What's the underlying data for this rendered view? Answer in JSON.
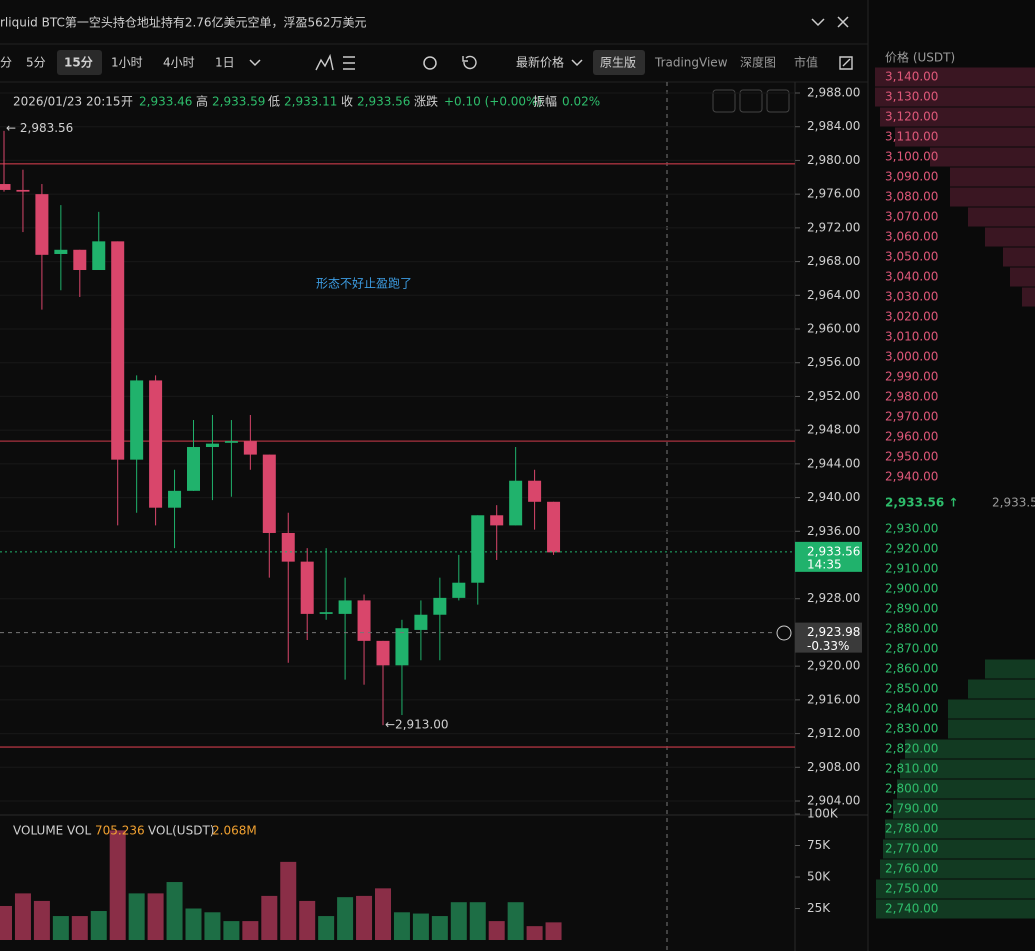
{
  "header": {
    "title": "rliquid BTC第一空头持仓地址持有2.76亿美元空单，浮盈562万美元"
  },
  "toolbar": {
    "intervals": [
      "分",
      "5分",
      "15分",
      "1小时",
      "4小时",
      "1日"
    ],
    "price_type": "最新价格",
    "views": [
      "原生版",
      "TradingView",
      "深度图",
      "市值"
    ]
  },
  "chart_data": {
    "type": "candlestick",
    "info": {
      "date": "2026/01/23 20:15",
      "items": [
        [
          "开",
          "2,933.46"
        ],
        [
          "高",
          "2,933.59"
        ],
        [
          "低",
          "2,933.11"
        ],
        [
          "收",
          "2,933.56"
        ],
        [
          "涨跌",
          "+0.10 (+0.00%)"
        ],
        [
          "振幅",
          "0.02%"
        ]
      ]
    },
    "open": [
      2977.2,
      2976.5,
      2976.0,
      2968.9,
      2969.4,
      2967.0,
      2970.4,
      2944.5,
      2953.9,
      2938.8,
      2940.8,
      2946.0,
      2946.5,
      2946.7,
      2945.1,
      2935.8,
      2932.4,
      2926.2,
      2926.2,
      2927.8,
      2923.0,
      2920.1,
      2924.3,
      2926.1,
      2928.1,
      2929.9,
      2937.9,
      2936.7,
      2942.0,
      2939.5
    ],
    "high": [
      2983.5,
      2978.9,
      2977.2,
      2974.7,
      2969.4,
      2973.9,
      2970.4,
      2954.5,
      2954.5,
      2943.3,
      2949.2,
      2949.8,
      2949.2,
      2949.8,
      2945.1,
      2938.2,
      2934.0,
      2934.0,
      2930.5,
      2928.5,
      2923.0,
      2925.5,
      2927.8,
      2930.5,
      2933.2,
      2937.9,
      2939.1,
      2946.0,
      2943.3,
      2939.5
    ],
    "low": [
      2976.3,
      2971.5,
      2962.3,
      2964.6,
      2963.8,
      2967.0,
      2936.7,
      2938.2,
      2936.7,
      2934.0,
      2940.8,
      2939.7,
      2940.1,
      2943.3,
      2930.5,
      2920.4,
      2923.1,
      2925.5,
      2918.4,
      2917.8,
      2913.0,
      2914.2,
      2920.7,
      2920.7,
      2927.8,
      2927.3,
      2932.6,
      2936.7,
      2936.2,
      2933.2
    ],
    "close": [
      2976.5,
      2976.3,
      2968.8,
      2969.4,
      2967.0,
      2970.4,
      2944.5,
      2953.9,
      2938.8,
      2940.8,
      2946.0,
      2946.4,
      2946.7,
      2945.1,
      2935.8,
      2932.4,
      2926.2,
      2926.4,
      2927.8,
      2923.0,
      2920.1,
      2924.5,
      2926.1,
      2928.1,
      2929.9,
      2937.9,
      2936.7,
      2942.0,
      2939.5,
      2933.5
    ],
    "volume": [
      27000,
      37000,
      31000,
      19000,
      19000,
      23000,
      87000,
      37000,
      37000,
      46000,
      25000,
      22000,
      15000,
      15000,
      35000,
      62000,
      31000,
      19000,
      34000,
      35000,
      41000,
      22000,
      21000,
      19000,
      30000,
      30000,
      15000,
      30000,
      11000,
      14000
    ],
    "up_color": "#20b26c",
    "down_color": "#d9466b",
    "ylim": [
      2902.34,
      2988.95
    ],
    "yticks": [
      {
        "value": 2988,
        "label": "2,988.00"
      },
      {
        "value": 2984,
        "label": "2,984.00"
      },
      {
        "value": 2980,
        "label": "2,980.00"
      },
      {
        "value": 2976,
        "label": "2,976.00"
      },
      {
        "value": 2972,
        "label": "2,972.00"
      },
      {
        "value": 2968,
        "label": "2,968.00"
      },
      {
        "value": 2964,
        "label": "2,964.00"
      },
      {
        "value": 2960,
        "label": "2,960.00"
      },
      {
        "value": 2956,
        "label": "2,956.00"
      },
      {
        "value": 2952,
        "label": "2,952.00"
      },
      {
        "value": 2948,
        "label": "2,948.00"
      },
      {
        "value": 2944,
        "label": "2,944.00"
      },
      {
        "value": 2940,
        "label": "2,940.00"
      },
      {
        "value": 2936,
        "label": "2,936.00"
      },
      {
        "value": 2928,
        "label": "2,928.00"
      },
      {
        "value": 2920,
        "label": "2,920.00"
      },
      {
        "value": 2916,
        "label": "2,916.00"
      },
      {
        "value": 2912,
        "label": "2,912.00"
      },
      {
        "value": 2908,
        "label": "2,908.00"
      },
      {
        "value": 2904,
        "label": "2,904.00"
      }
    ],
    "level_lines": [
      2979.6,
      2946.7,
      2910.4
    ],
    "last_price": {
      "value": 2933.56,
      "label": "2,933.56",
      "countdown": "14:35"
    },
    "crosshair": {
      "value": 2923.98,
      "label": "2,923.98",
      "change": "-0.33%"
    },
    "high_marker": {
      "value": 2983.56,
      "label": "← 2,983.56"
    },
    "low_marker": {
      "value": 2913.0,
      "label": "←2,913.00"
    },
    "annotation": "形态不好止盈跑了",
    "volume_header": [
      "VOLUME",
      "VOL",
      "705.236",
      "VOL(USDT)",
      "2.068M"
    ],
    "vol_ylim": [
      0,
      100000
    ],
    "vol_yticks": [
      {
        "value": 100000,
        "label": "100K"
      },
      {
        "value": 75000,
        "label": "75K"
      },
      {
        "value": 50000,
        "label": "50K"
      },
      {
        "value": 25000,
        "label": "25K"
      }
    ]
  },
  "orderbook": {
    "header": "价格 (USDT)",
    "asks": {
      "prices": [
        "3,140.00",
        "3,130.00",
        "3,120.00",
        "3,110.00",
        "3,100.00",
        "3,090.00",
        "3,080.00",
        "3,070.00",
        "3,060.00",
        "3,050.00",
        "3,040.00",
        "3,030.00",
        "3,020.00",
        "3,010.00",
        "3,000.00",
        "2,990.00",
        "2,980.00",
        "2,970.00",
        "2,960.00",
        "2,950.00",
        "2,940.00"
      ],
      "depth": [
        160,
        160,
        155,
        140,
        105,
        85,
        85,
        67,
        50,
        32,
        25,
        13,
        0,
        0,
        0,
        0,
        0,
        0,
        0,
        0,
        0
      ]
    },
    "last": "2,933.56 ↑",
    "last_small": "2,933.5",
    "bids": {
      "prices": [
        "2,930.00",
        "2,920.00",
        "2,910.00",
        "2,900.00",
        "2,890.00",
        "2,880.00",
        "2,870.00",
        "2,860.00",
        "2,850.00",
        "2,840.00",
        "2,830.00",
        "2,820.00",
        "2,810.00",
        "2,800.00",
        "2,790.00",
        "2,780.00",
        "2,770.00",
        "2,760.00",
        "2,750.00",
        "2,740.00"
      ],
      "depth": [
        0,
        0,
        0,
        0,
        0,
        0,
        0,
        50,
        67,
        87,
        87,
        130,
        135,
        138,
        142,
        150,
        152,
        155,
        159,
        159
      ]
    }
  }
}
